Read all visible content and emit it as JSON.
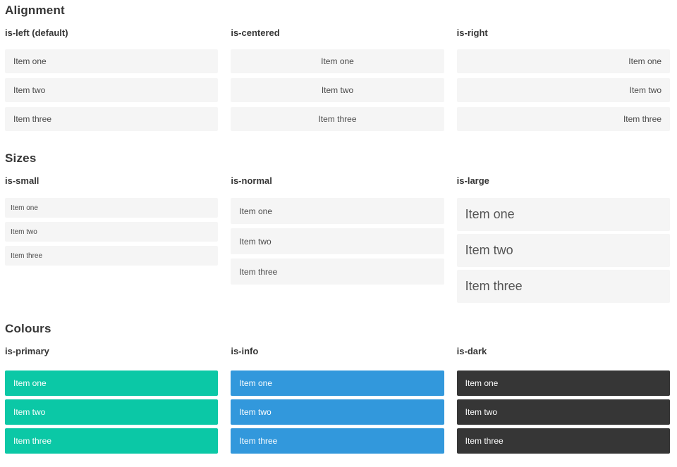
{
  "colors": {
    "primary": "#0bc8a6",
    "info": "#3298dc",
    "dark": "#363636",
    "item_background": "#f5f5f5",
    "item_text": "#4a4a4a",
    "heading_text": "#363636"
  },
  "sections": [
    {
      "title": "Alignment",
      "groups": [
        {
          "label": "is-left (default)",
          "variant": "left",
          "items": [
            "Item one",
            "Item two",
            "Item three"
          ]
        },
        {
          "label": "is-centered",
          "variant": "centered",
          "items": [
            "Item one",
            "Item two",
            "Item three"
          ]
        },
        {
          "label": "is-right",
          "variant": "right",
          "items": [
            "Item one",
            "Item two",
            "Item three"
          ]
        }
      ]
    },
    {
      "title": "Sizes",
      "groups": [
        {
          "label": "is-small",
          "variant": "small",
          "items": [
            "Item one",
            "Item two",
            "Item three"
          ]
        },
        {
          "label": "is-normal",
          "variant": "normal",
          "items": [
            "Item one",
            "Item two",
            "Item three"
          ]
        },
        {
          "label": "is-large",
          "variant": "large",
          "items": [
            "Item one",
            "Item two",
            "Item three"
          ]
        }
      ]
    },
    {
      "title": "Colours",
      "groups": [
        {
          "label": "is-primary",
          "variant": "primary",
          "items": [
            "Item one",
            "Item two",
            "Item three"
          ]
        },
        {
          "label": "is-info",
          "variant": "info",
          "items": [
            "Item one",
            "Item two",
            "Item three"
          ]
        },
        {
          "label": "is-dark",
          "variant": "dark",
          "items": [
            "Item one",
            "Item two",
            "Item three"
          ]
        }
      ]
    }
  ]
}
